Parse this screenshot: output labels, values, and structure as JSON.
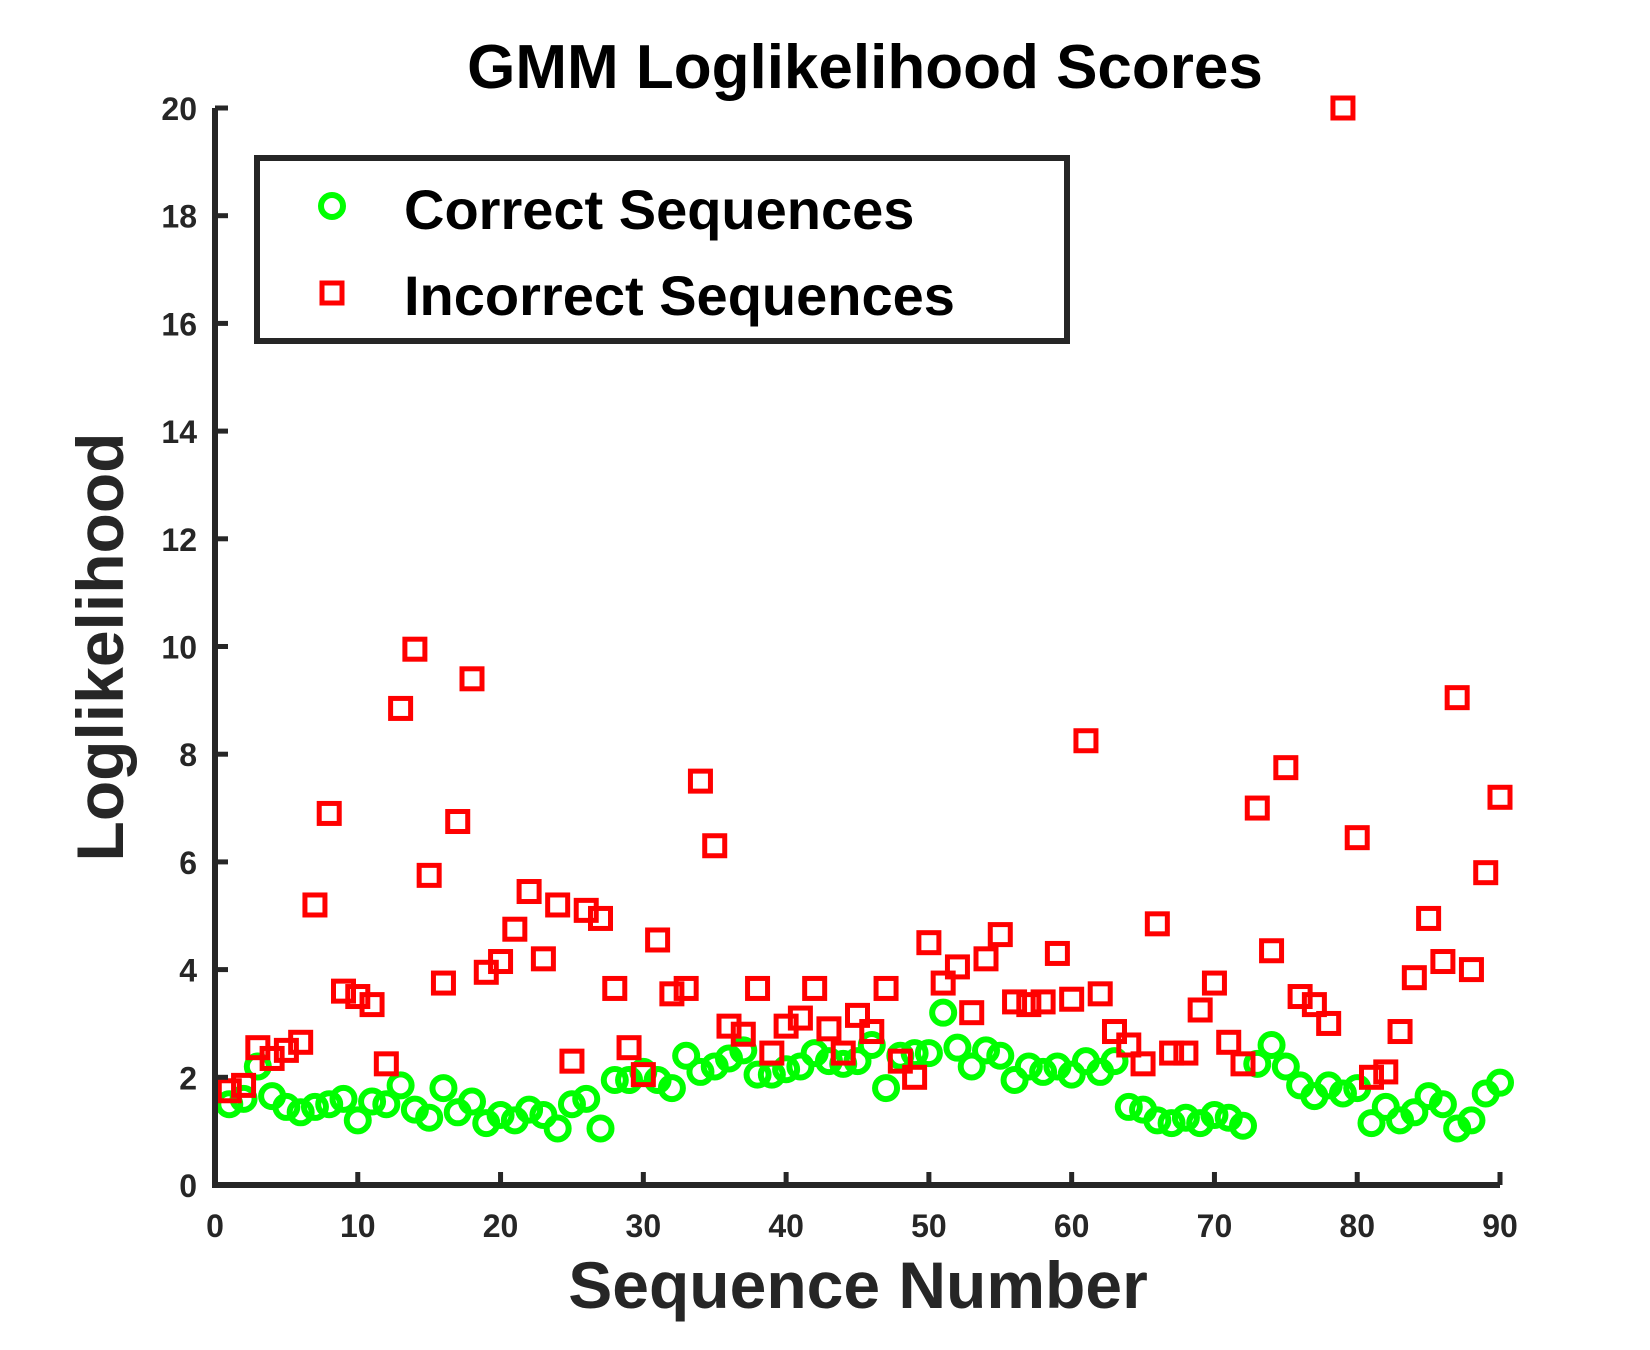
{
  "chart_data": {
    "type": "scatter",
    "title": "GMM Loglikelihood Scores",
    "xlabel": "Sequence Number",
    "ylabel": "Loglikelihood",
    "xlim": [
      0,
      90
    ],
    "ylim": [
      0,
      20
    ],
    "xticks": [
      0,
      10,
      20,
      30,
      40,
      50,
      60,
      70,
      80,
      90
    ],
    "yticks": [
      0,
      2,
      4,
      6,
      8,
      10,
      12,
      14,
      16,
      18,
      20
    ],
    "grid": false,
    "legend_position": "top-left",
    "series": [
      {
        "name": "Correct Sequences",
        "marker": "circle",
        "color": "#00ff00",
        "x": [
          1,
          2,
          3,
          4,
          5,
          6,
          7,
          8,
          9,
          10,
          11,
          12,
          13,
          14,
          15,
          16,
          17,
          18,
          19,
          20,
          21,
          22,
          23,
          24,
          25,
          26,
          27,
          28,
          29,
          30,
          31,
          32,
          33,
          34,
          35,
          36,
          37,
          38,
          39,
          40,
          41,
          42,
          43,
          44,
          45,
          46,
          47,
          48,
          49,
          50,
          51,
          52,
          53,
          54,
          55,
          56,
          57,
          58,
          59,
          60,
          61,
          62,
          63,
          64,
          65,
          66,
          67,
          68,
          69,
          70,
          71,
          72,
          73,
          74,
          75,
          76,
          77,
          78,
          79,
          80,
          81,
          82,
          83,
          84,
          85,
          86,
          87,
          88,
          89,
          90
        ],
        "y": [
          1.5,
          1.6,
          2.2,
          1.65,
          1.45,
          1.35,
          1.45,
          1.5,
          1.6,
          1.2,
          1.55,
          1.5,
          1.85,
          1.4,
          1.25,
          1.8,
          1.35,
          1.55,
          1.15,
          1.3,
          1.2,
          1.4,
          1.3,
          1.05,
          1.5,
          1.6,
          1.05,
          1.95,
          1.95,
          2.1,
          1.95,
          1.8,
          2.4,
          2.1,
          2.2,
          2.35,
          2.5,
          2.05,
          2.05,
          2.15,
          2.2,
          2.45,
          2.3,
          2.25,
          2.3,
          2.6,
          1.8,
          2.4,
          2.45,
          2.45,
          3.2,
          2.55,
          2.2,
          2.5,
          2.4,
          1.95,
          2.2,
          2.1,
          2.2,
          2.05,
          2.3,
          2.1,
          2.3,
          1.45,
          1.4,
          1.2,
          1.15,
          1.25,
          1.15,
          1.3,
          1.25,
          1.1,
          2.25,
          2.6,
          2.2,
          1.85,
          1.65,
          1.85,
          1.7,
          1.8,
          1.15,
          1.45,
          1.2,
          1.35,
          1.65,
          1.5,
          1.05,
          1.2,
          1.7,
          1.9
        ]
      },
      {
        "name": "Incorrect Sequences",
        "marker": "square",
        "color": "#ff0000",
        "x": [
          1,
          2,
          3,
          4,
          5,
          6,
          7,
          8,
          9,
          10,
          11,
          12,
          13,
          14,
          15,
          16,
          17,
          18,
          19,
          20,
          21,
          22,
          23,
          24,
          25,
          26,
          27,
          28,
          29,
          30,
          31,
          32,
          33,
          34,
          35,
          36,
          37,
          38,
          39,
          40,
          41,
          42,
          43,
          44,
          45,
          46,
          47,
          48,
          49,
          50,
          51,
          52,
          53,
          54,
          55,
          56,
          57,
          58,
          59,
          60,
          61,
          62,
          63,
          64,
          65,
          66,
          67,
          68,
          69,
          70,
          71,
          72,
          73,
          74,
          75,
          76,
          77,
          78,
          79,
          80,
          81,
          82,
          83,
          84,
          85,
          86,
          87,
          88,
          89,
          90
        ],
        "y": [
          1.75,
          1.85,
          2.55,
          2.35,
          2.5,
          2.65,
          5.2,
          6.9,
          3.6,
          3.5,
          3.35,
          2.25,
          8.85,
          9.95,
          5.75,
          3.75,
          6.75,
          9.4,
          3.95,
          4.15,
          4.75,
          5.45,
          4.2,
          5.2,
          2.3,
          5.1,
          4.95,
          3.65,
          2.55,
          2.05,
          4.55,
          3.55,
          3.65,
          7.5,
          6.3,
          2.95,
          2.8,
          3.65,
          2.45,
          2.95,
          3.1,
          3.65,
          2.9,
          2.45,
          3.15,
          2.85,
          3.65,
          2.3,
          2.0,
          4.5,
          3.75,
          4.05,
          3.2,
          4.2,
          4.65,
          3.4,
          3.35,
          3.4,
          4.3,
          3.45,
          8.25,
          3.55,
          2.85,
          2.6,
          2.25,
          4.85,
          2.45,
          2.45,
          3.25,
          3.75,
          2.65,
          2.25,
          7.0,
          4.35,
          7.75,
          3.5,
          3.35,
          3.0,
          20.0,
          6.45,
          2.0,
          2.1,
          2.85,
          3.85,
          4.95,
          4.15,
          9.05,
          4.0,
          5.8,
          7.2
        ]
      }
    ]
  }
}
